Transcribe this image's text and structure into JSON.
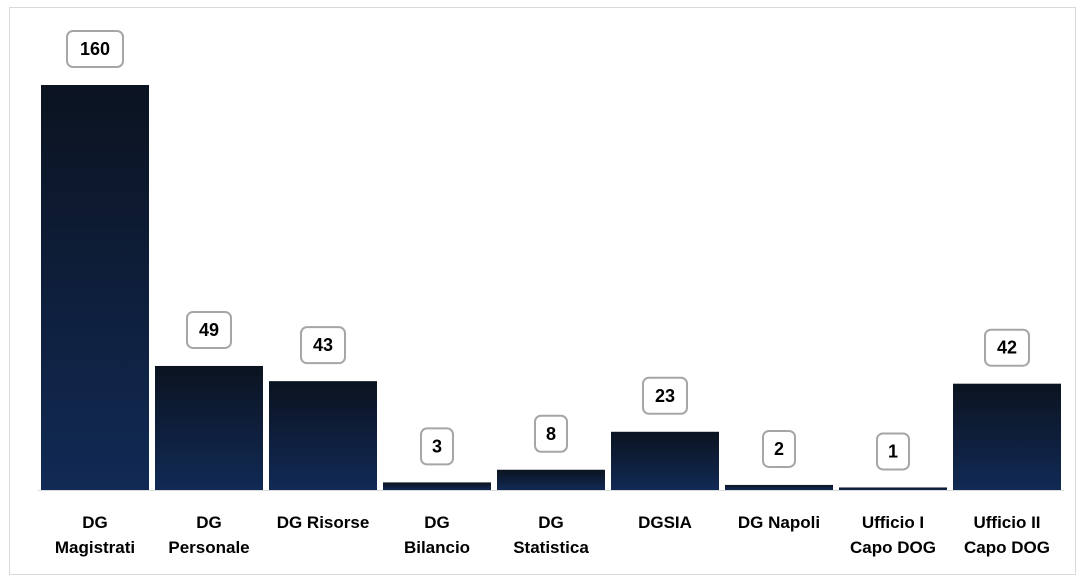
{
  "chart_data": {
    "type": "bar",
    "title": "",
    "xlabel": "",
    "ylabel": "",
    "categories": [
      [
        "DG",
        "Magistrati"
      ],
      [
        "DG",
        "Personale"
      ],
      [
        "DG Risorse"
      ],
      [
        "DG",
        "Bilancio"
      ],
      [
        "DG",
        "Statistica"
      ],
      [
        "DGSIA"
      ],
      [
        "DG Napoli"
      ],
      [
        "Ufficio I",
        "Capo DOG"
      ],
      [
        "Ufficio II",
        "Capo DOG"
      ]
    ],
    "values": [
      160,
      49,
      43,
      3,
      8,
      23,
      2,
      1,
      42
    ],
    "data_labels": [
      "160",
      "49",
      "43",
      "3",
      "8",
      "23",
      "2",
      "1",
      "42"
    ],
    "ylim": [
      0,
      160
    ],
    "grid": false,
    "legend": "none",
    "colors": {
      "bar_top": "#0b1320",
      "bar_bottom": "#112a55",
      "label_box_border": "#a6a6a6",
      "axis": "#d9d9d9"
    }
  }
}
